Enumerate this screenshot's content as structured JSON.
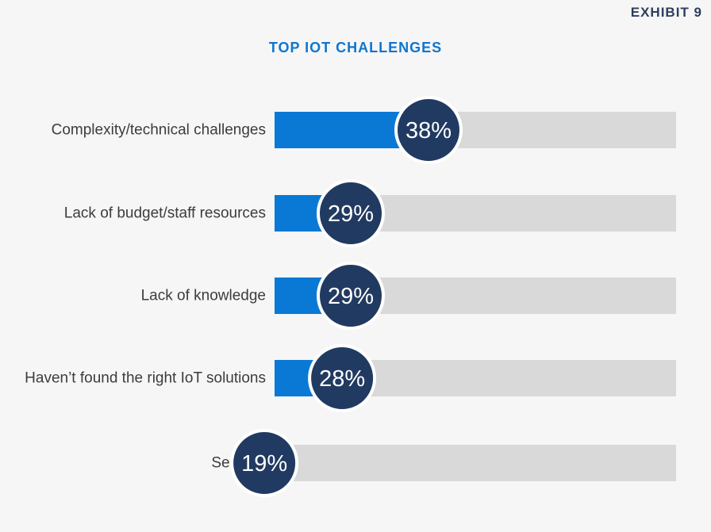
{
  "header": {
    "exhibit": "EXHIBIT 9"
  },
  "colors": {
    "bar_fill": "#0a79d6",
    "bar_track": "#d9d9d9",
    "bubble": "#213a61",
    "bubble_border": "#ffffff",
    "title": "#0f75cf"
  },
  "chart_data": {
    "type": "bar",
    "orientation": "horizontal",
    "title": "TOP IOT CHALLENGES",
    "categories": [
      "Complexity/technical challenges",
      "Lack of budget/staff resources",
      "Lack of knowledge",
      "Haven’t found the right IoT solutions",
      "Security"
    ],
    "values": [
      38,
      29,
      29,
      28,
      19
    ],
    "value_labels": [
      "38%",
      "29%",
      "29%",
      "28%",
      "19%"
    ],
    "unit": "%",
    "xlim": [
      0,
      100
    ],
    "grid": false,
    "legend": "none"
  }
}
